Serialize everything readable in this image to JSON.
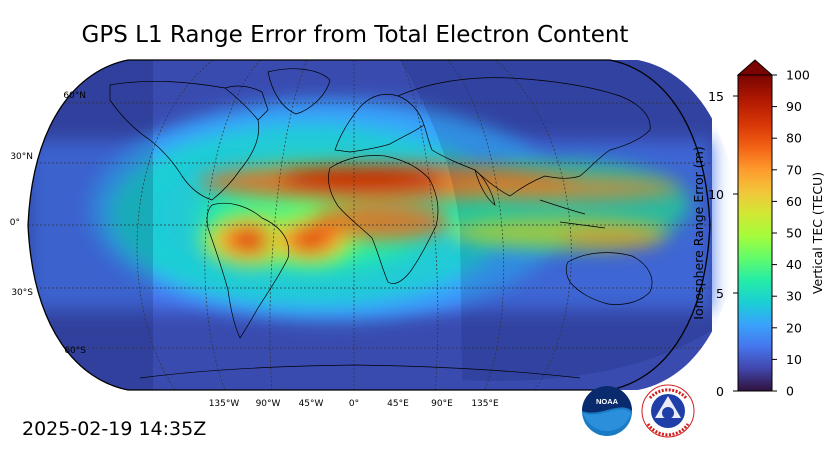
{
  "title": "GPS L1 Range Error from Total Electron Content",
  "timestamp": "2025-02-19 14:35Z",
  "map": {
    "projection": "Robinson",
    "lat_labels": [
      "60°N",
      "30°N",
      "0°",
      "30°S",
      "60°S"
    ],
    "lon_labels": [
      "135°W",
      "90°W",
      "45°W",
      "0°",
      "45°E",
      "90°E",
      "135°E"
    ],
    "gridlines": "dashed",
    "night_shading": true
  },
  "colorbar": {
    "left_label": "Ionosphere Range Error (m)",
    "left_ticks": [
      "0",
      "5",
      "10",
      "15"
    ],
    "right_label": "Vertical TEC (TECU)",
    "right_ticks": [
      "0",
      "10",
      "20",
      "30",
      "40",
      "50",
      "60",
      "70",
      "80",
      "90",
      "100"
    ],
    "extend": "max",
    "colormap": [
      "#30123b",
      "#4145ab",
      "#4675ed",
      "#39a2fc",
      "#1bcfd4",
      "#24eca6",
      "#61fc6c",
      "#a4fc3b",
      "#d1e834",
      "#f3c63a",
      "#fe9b2d",
      "#f36315",
      "#d93806",
      "#b11901",
      "#7a0402"
    ]
  },
  "logos": [
    {
      "name": "noaa-logo",
      "text": "NOAA"
    },
    {
      "name": "nws-logo",
      "text": "NATIONAL WEATHER SERVICE"
    }
  ]
}
